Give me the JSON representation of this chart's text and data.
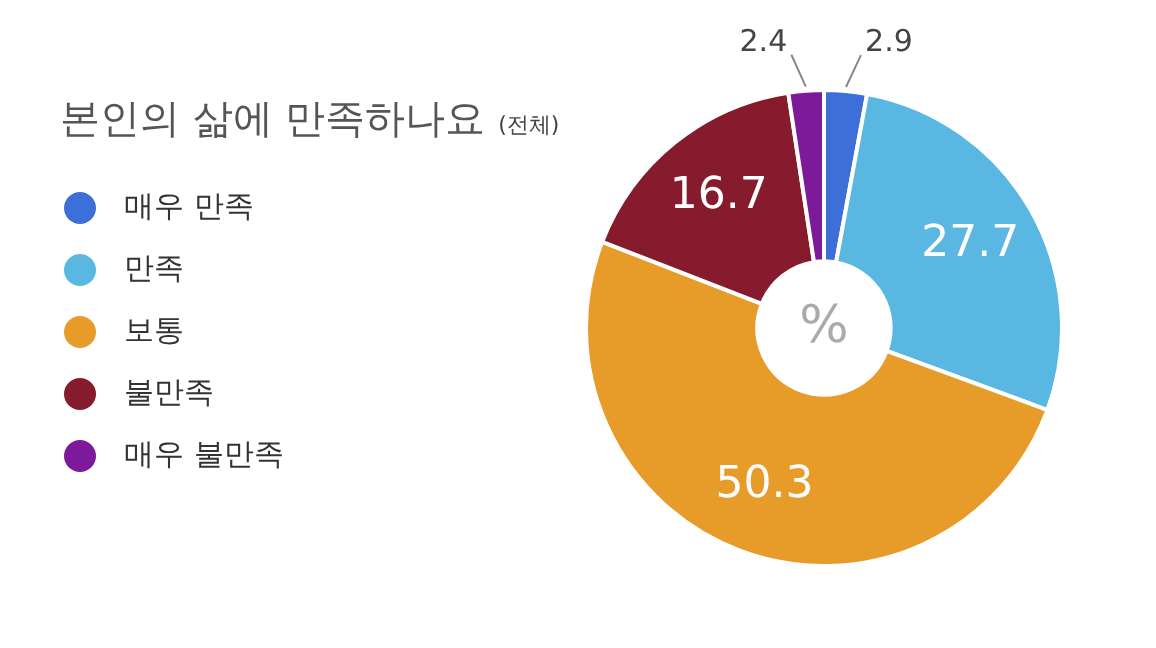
{
  "chart_data": {
    "type": "donut",
    "title": "본인의 삶에 만족하나요",
    "subtitle": "(전체)",
    "categories": [
      "매우 만족",
      "만족",
      "보통",
      "불만족",
      "매우 불만족"
    ],
    "values": [
      2.9,
      27.7,
      50.3,
      16.7,
      2.4
    ],
    "colors": [
      "#3e6fd8",
      "#5ab7e2",
      "#e79b29",
      "#861b2d",
      "#7d1a99"
    ],
    "data_labels": true,
    "legend": "left",
    "annotations": [
      "%"
    ]
  }
}
